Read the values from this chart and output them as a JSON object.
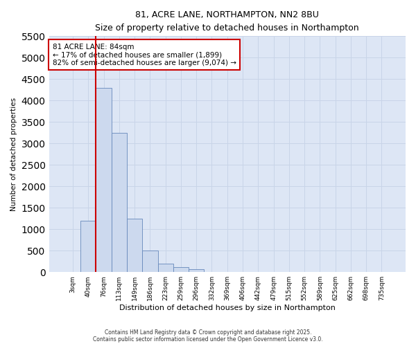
{
  "title_line1": "81, ACRE LANE, NORTHAMPTON, NN2 8BU",
  "title_line2": "Size of property relative to detached houses in Northampton",
  "xlabel": "Distribution of detached houses by size in Northampton",
  "ylabel": "Number of detached properties",
  "categories": [
    "3sqm",
    "40sqm",
    "76sqm",
    "113sqm",
    "149sqm",
    "186sqm",
    "223sqm",
    "259sqm",
    "296sqm",
    "332sqm",
    "369sqm",
    "406sqm",
    "442sqm",
    "479sqm",
    "515sqm",
    "552sqm",
    "589sqm",
    "625sqm",
    "662sqm",
    "698sqm",
    "735sqm"
  ],
  "values": [
    0,
    1200,
    4300,
    3250,
    1250,
    500,
    200,
    120,
    60,
    0,
    0,
    0,
    0,
    0,
    0,
    0,
    0,
    0,
    0,
    0,
    0
  ],
  "bar_color": "#ccd9ee",
  "bar_edge_color": "#6688bb",
  "grid_color": "#c8d4e8",
  "background_color": "#dde6f5",
  "property_line_color": "#cc0000",
  "property_bin_index": 2,
  "annotation_text": "81 ACRE LANE: 84sqm\n← 17% of detached houses are smaller (1,899)\n82% of semi-detached houses are larger (9,074) →",
  "annotation_box_edge_color": "#cc0000",
  "ylim": [
    0,
    5500
  ],
  "yticks": [
    0,
    500,
    1000,
    1500,
    2000,
    2500,
    3000,
    3500,
    4000,
    4500,
    5000,
    5500
  ],
  "footer_line1": "Contains HM Land Registry data © Crown copyright and database right 2025.",
  "footer_line2": "Contains public sector information licensed under the Open Government Licence v3.0."
}
